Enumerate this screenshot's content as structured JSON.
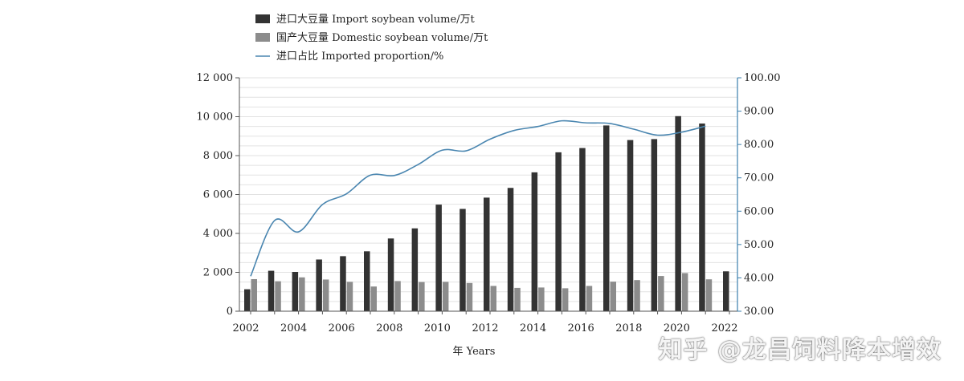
{
  "chart_data": {
    "type": "bar",
    "title": "",
    "xlabel": "年  Years",
    "ylabel": "",
    "ylabel_right": "",
    "x": [
      2002,
      2003,
      2004,
      2005,
      2006,
      2007,
      2008,
      2009,
      2010,
      2011,
      2012,
      2013,
      2014,
      2015,
      2016,
      2017,
      2018,
      2019,
      2020,
      2021,
      2022
    ],
    "x_tick_labels": [
      "2002",
      "2004",
      "2006",
      "2008",
      "2010",
      "2012",
      "2014",
      "2016",
      "2018",
      "2020",
      "2022"
    ],
    "ylim": [
      0,
      12000
    ],
    "y_tick_labels": [
      "0",
      "2 000",
      "4 000",
      "6 000",
      "8 000",
      "10 000",
      "12 000"
    ],
    "ylim_right": [
      30,
      100
    ],
    "y_right_tick_labels": [
      "30.00",
      "40.00",
      "50.00",
      "60.00",
      "70.00",
      "80.00",
      "90.00",
      "100.00"
    ],
    "grid": true,
    "legend_position": "top-left",
    "series": [
      {
        "name": "进口大豆量  Import soybean volume/万t",
        "kind": "bar",
        "axis": "left",
        "color": "#333333",
        "values": [
          1130,
          2080,
          2020,
          2660,
          2830,
          3080,
          3740,
          4260,
          5480,
          5260,
          5840,
          6340,
          7140,
          8170,
          8390,
          9550,
          8800,
          8850,
          10030,
          9650,
          2050
        ]
      },
      {
        "name": "国产大豆量  Domestic soybean volume/万t",
        "kind": "bar",
        "axis": "left",
        "color": "#8c8c8c",
        "values": [
          1650,
          1540,
          1740,
          1630,
          1510,
          1270,
          1550,
          1500,
          1510,
          1450,
          1300,
          1200,
          1220,
          1180,
          1300,
          1520,
          1600,
          1810,
          1960,
          1640,
          null
        ]
      },
      {
        "name": "进口占比  Imported proportion/%",
        "kind": "line",
        "axis": "right",
        "color": "#4a86b0",
        "values": [
          40.5,
          57.2,
          53.8,
          62.0,
          65.2,
          70.8,
          70.7,
          74.0,
          78.3,
          78.1,
          81.6,
          84.2,
          85.4,
          87.1,
          86.5,
          86.3,
          84.6,
          82.8,
          83.7,
          85.5,
          null
        ]
      }
    ]
  },
  "watermark": "知乎 @龙昌饲料降本增效"
}
